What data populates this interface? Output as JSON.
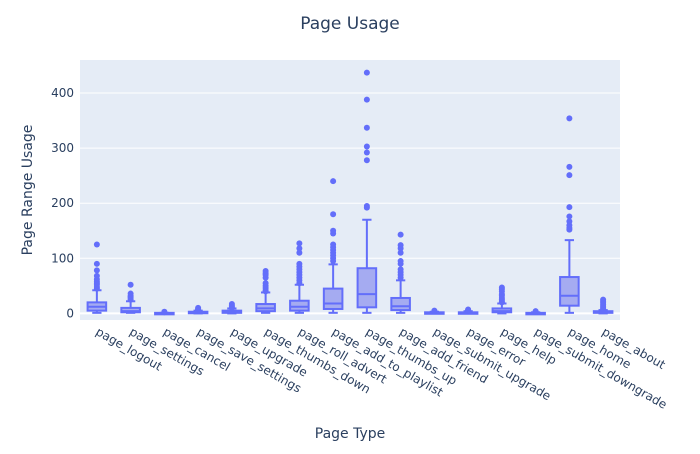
{
  "chart_data": {
    "type": "box",
    "title": "Page Usage",
    "xlabel": "Page Type",
    "ylabel": "Page Range Usage",
    "ylim": [
      -12,
      460
    ],
    "yticks": [
      0,
      100,
      200,
      300,
      400
    ],
    "grid": true,
    "colors": {
      "plot_bg": "#e5ecf6",
      "grid": "#ffffff",
      "box_line": "#636efa",
      "box_fill": "#a5abf1",
      "text": "#2a3f5f"
    },
    "categories": [
      "page_logout",
      "page_settings",
      "page_cancel",
      "page_save_settings",
      "page_upgrade",
      "page_thumbs_down",
      "page_roll_advert",
      "page_add_to_playlist",
      "page_thumbs_up",
      "page_add_friend",
      "page_submit_upgrade",
      "page_error",
      "page_help",
      "page_submit_downgrade",
      "page_home",
      "page_about"
    ],
    "boxes": [
      {
        "category": "page_logout",
        "min": 1,
        "q1": 5,
        "median": 12,
        "q3": 20,
        "max": 42,
        "outliers": [
          45,
          48,
          52,
          55,
          58,
          62,
          68,
          78,
          90,
          125
        ]
      },
      {
        "category": "page_settings",
        "min": 1,
        "q1": 2,
        "median": 4,
        "q3": 10,
        "max": 22,
        "outliers": [
          25,
          28,
          30,
          32,
          36,
          52
        ]
      },
      {
        "category": "page_cancel",
        "min": 0,
        "q1": 0,
        "median": 0,
        "q3": 1,
        "max": 1,
        "outliers": [
          2,
          3
        ]
      },
      {
        "category": "page_save_settings",
        "min": 0,
        "q1": 1,
        "median": 2,
        "q3": 3,
        "max": 5,
        "outliers": [
          6,
          7,
          8,
          10
        ]
      },
      {
        "category": "page_upgrade",
        "min": 0,
        "q1": 1,
        "median": 2,
        "q3": 5,
        "max": 9,
        "outliers": [
          10,
          12,
          14,
          17
        ]
      },
      {
        "category": "page_thumbs_down",
        "min": 1,
        "q1": 4,
        "median": 9,
        "q3": 17,
        "max": 38,
        "outliers": [
          40,
          42,
          46,
          50,
          55,
          65,
          70,
          73,
          77
        ]
      },
      {
        "category": "page_roll_advert",
        "min": 1,
        "q1": 5,
        "median": 12,
        "q3": 23,
        "max": 52,
        "outliers": [
          55,
          60,
          65,
          70,
          75,
          80,
          85,
          90,
          110,
          118,
          127
        ]
      },
      {
        "category": "page_add_to_playlist",
        "min": 1,
        "q1": 8,
        "median": 18,
        "q3": 45,
        "max": 89,
        "outliers": [
          95,
          100,
          105,
          110,
          115,
          120,
          125,
          145,
          150,
          180,
          240
        ]
      },
      {
        "category": "page_thumbs_up",
        "min": 1,
        "q1": 11,
        "median": 35,
        "q3": 82,
        "max": 170,
        "outliers": [
          192,
          195,
          278,
          292,
          303,
          337,
          388,
          437
        ]
      },
      {
        "category": "page_add_friend",
        "min": 1,
        "q1": 6,
        "median": 13,
        "q3": 28,
        "max": 60,
        "outliers": [
          65,
          70,
          75,
          80,
          90,
          95,
          110,
          118,
          124,
          143
        ]
      },
      {
        "category": "page_submit_upgrade",
        "min": 0,
        "q1": 1,
        "median": 1,
        "q3": 2,
        "max": 3,
        "outliers": [
          4,
          5
        ]
      },
      {
        "category": "page_error",
        "min": 0,
        "q1": 1,
        "median": 1,
        "q3": 2,
        "max": 4,
        "outliers": [
          5,
          6,
          7
        ]
      },
      {
        "category": "page_help",
        "min": 0,
        "q1": 2,
        "median": 4,
        "q3": 9,
        "max": 18,
        "outliers": [
          20,
          22,
          25,
          28,
          32,
          35,
          40,
          44,
          47
        ]
      },
      {
        "category": "page_submit_downgrade",
        "min": 0,
        "q1": 0,
        "median": 0,
        "q3": 1,
        "max": 2,
        "outliers": [
          3,
          4
        ]
      },
      {
        "category": "page_home",
        "min": 1,
        "q1": 14,
        "median": 32,
        "q3": 66,
        "max": 133,
        "outliers": [
          152,
          155,
          160,
          167,
          176,
          193,
          251,
          266,
          354
        ]
      },
      {
        "category": "page_about",
        "min": 0,
        "q1": 1,
        "median": 2,
        "q3": 4,
        "max": 6,
        "outliers": [
          8,
          10,
          13,
          16,
          19,
          22,
          25
        ]
      }
    ]
  }
}
